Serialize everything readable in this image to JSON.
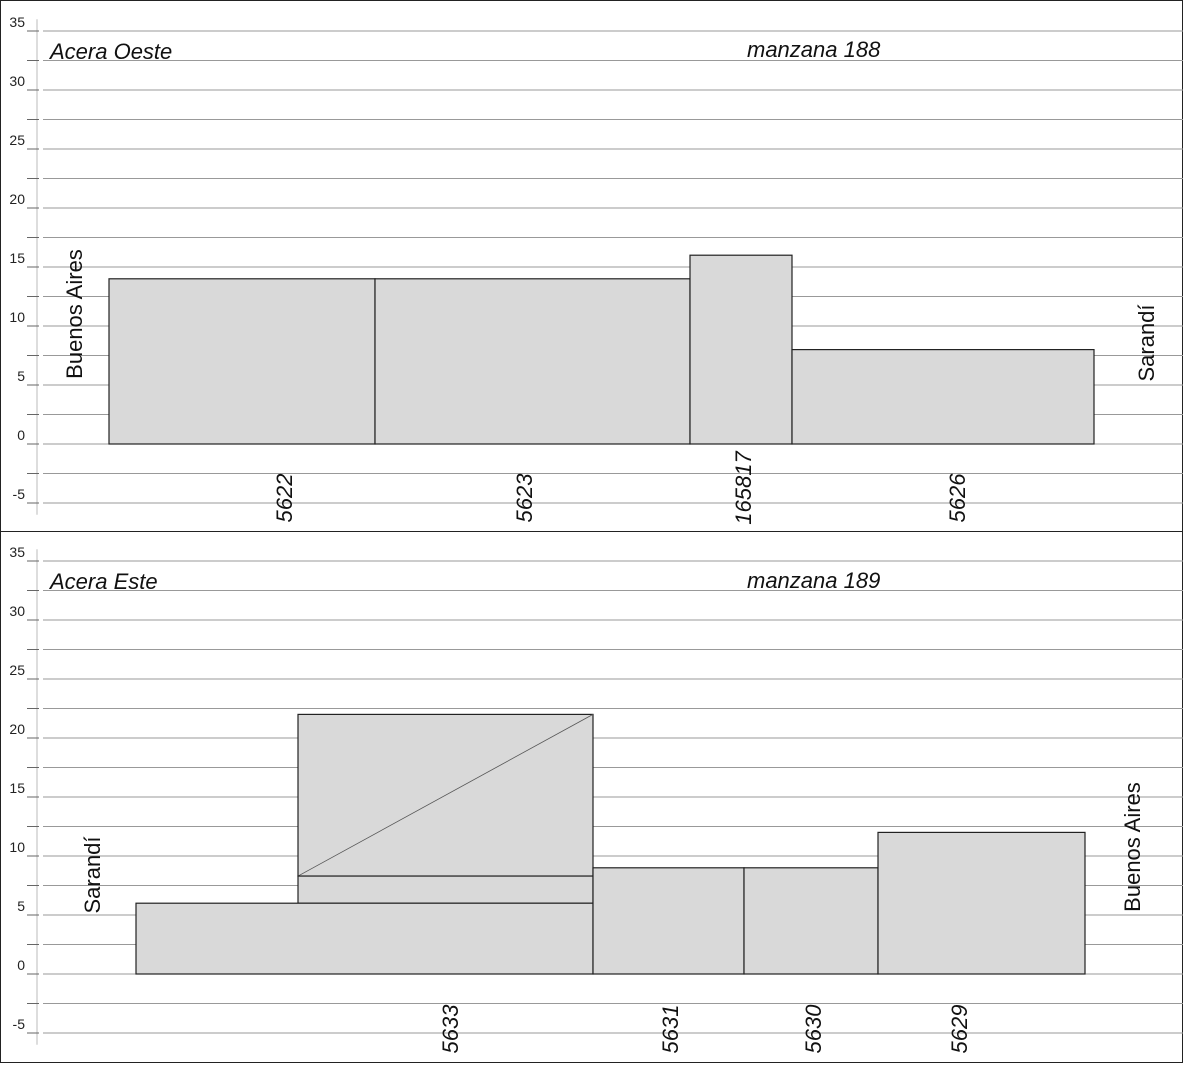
{
  "panels": [
    {
      "side_label": "Acera Oeste",
      "block_label": "manzana 188",
      "left_street": "Buenos Aires",
      "right_street": "Sarandí",
      "ylim": [
        -6,
        36
      ],
      "y_ticks": [
        35,
        30,
        25,
        20,
        15,
        10,
        5,
        0,
        -5
      ],
      "lots": [
        {
          "id": "5622",
          "height": 14
        },
        {
          "id": "5623",
          "height": 14
        },
        {
          "id": "165817",
          "height": 16
        },
        {
          "id": "5626",
          "height": 8
        }
      ]
    },
    {
      "side_label": "Acera Este",
      "block_label": "manzana 189",
      "left_street": "Sarandí",
      "right_street": "Buenos Aires",
      "ylim": [
        -6,
        36
      ],
      "y_ticks": [
        35,
        30,
        25,
        20,
        15,
        10,
        5,
        0,
        -5
      ],
      "lots": [
        {
          "id": "5633",
          "height": 6,
          "upper_volume_heights": [
            8.3,
            22
          ]
        },
        {
          "id": "5631",
          "height": 9
        },
        {
          "id": "5630",
          "height": 9
        },
        {
          "id": "5629",
          "height": 12
        }
      ]
    }
  ],
  "colors": {
    "building_fill": "#d9d9d9",
    "building_stroke": "#222222",
    "grid": "#999999"
  }
}
